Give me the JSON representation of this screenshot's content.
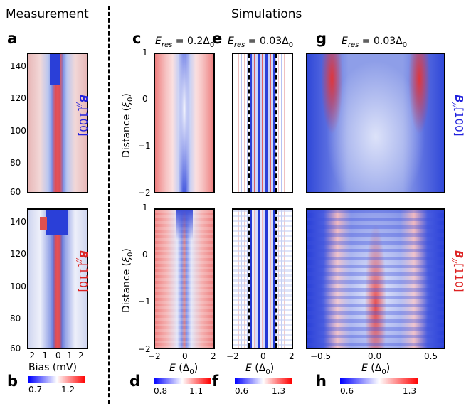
{
  "headers": {
    "measurement": "Measurement",
    "simulations": "Simulations"
  },
  "panel_labels": {
    "a": "a",
    "b": "b",
    "c": "c",
    "d": "d",
    "e": "e",
    "f": "f",
    "g": "g",
    "h": "h"
  },
  "eres": {
    "c": {
      "prefix": "E",
      "sub": "res",
      "value": " = 0.2Δ",
      "zero": "0"
    },
    "e": {
      "prefix": "E",
      "sub": "res",
      "value": " = 0.03Δ",
      "zero": "0"
    },
    "g": {
      "prefix": "E",
      "sub": "res",
      "value": " = 0.03Δ",
      "zero": "0"
    }
  },
  "field_labels": {
    "top": {
      "B": "B",
      "sub": "//",
      "dir": "[100]",
      "color": "#2222dd"
    },
    "bottom": {
      "B": "B",
      "sub": "//",
      "dir": "[110]",
      "color": "#dd2222"
    }
  },
  "measurement_axis": {
    "y_ticks": [
      "140",
      "120",
      "100",
      "80",
      "60"
    ],
    "x_ticks": [
      "-2",
      "-1",
      "0",
      "1",
      "2"
    ],
    "xlabel": "Bias (mV)"
  },
  "sim_axis": {
    "ylabel_main": "Distance (",
    "ylabel_xi": "ξ",
    "ylabel_sub": "0",
    "ylabel_end": ")",
    "y_ticks": [
      "1",
      "0",
      "−1",
      "−2"
    ],
    "ce_x_ticks": [
      "−2",
      "0",
      "2"
    ],
    "g_x_ticks": [
      "−0.5",
      "0.0",
      "0.5"
    ],
    "xlabel_E": "E",
    "xlabel_unit": " (Δ",
    "xlabel_sub": "0",
    "xlabel_end": ")"
  },
  "colorbars": {
    "b": {
      "min": "0.7",
      "max": "1.2"
    },
    "d": {
      "min": "0.8",
      "max": "1.1"
    },
    "f": {
      "min": "0.6",
      "max": "1.3"
    },
    "h": {
      "min": "0.6",
      "max": "1.3"
    }
  },
  "colors": {
    "low": "#0000ff",
    "mid": "#ffffff",
    "high": "#ff0000"
  }
}
